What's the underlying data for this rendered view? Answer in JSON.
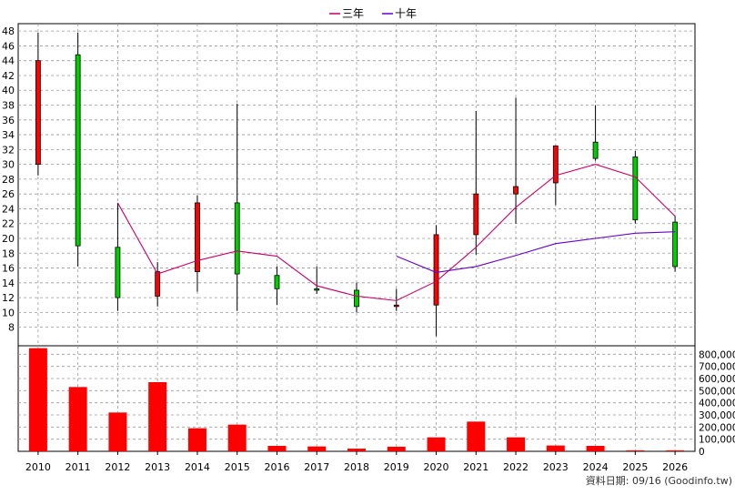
{
  "legend": {
    "items": [
      {
        "label": "三年",
        "color": "#cc0066"
      },
      {
        "label": "十年",
        "color": "#6600cc"
      }
    ]
  },
  "footer": {
    "date_text": "資料日期: 09/16  (Goodinfo.tw)"
  },
  "chart_data": [
    {
      "type": "candlestick",
      "x": [
        "2010",
        "2011",
        "2012",
        "2013",
        "2014",
        "2015",
        "2016",
        "2017",
        "2018",
        "2019",
        "2020",
        "2021",
        "2022",
        "2023",
        "2024",
        "2025",
        "2026"
      ],
      "ohlc": [
        {
          "open": 30.0,
          "high": 47.8,
          "low": 28.5,
          "close": 44.0,
          "direction": "up"
        },
        {
          "open": 44.8,
          "high": 47.8,
          "low": 16.2,
          "close": 19.0,
          "direction": "down"
        },
        {
          "open": 18.8,
          "high": 24.8,
          "low": 10.2,
          "close": 12.0,
          "direction": "down"
        },
        {
          "open": 12.2,
          "high": 16.8,
          "low": 10.8,
          "close": 15.5,
          "direction": "up"
        },
        {
          "open": 15.5,
          "high": 25.8,
          "low": 12.8,
          "close": 24.8,
          "direction": "up"
        },
        {
          "open": 24.8,
          "high": 38.2,
          "low": 10.2,
          "close": 15.2,
          "direction": "down"
        },
        {
          "open": 15.0,
          "high": 16.2,
          "low": 11.0,
          "close": 13.2,
          "direction": "down"
        },
        {
          "open": 13.2,
          "high": 16.2,
          "low": 12.5,
          "close": 13.0,
          "direction": "down"
        },
        {
          "open": 13.0,
          "high": 14.0,
          "low": 10.0,
          "close": 10.8,
          "direction": "down"
        },
        {
          "open": 10.8,
          "high": 13.2,
          "low": 10.2,
          "close": 11.0,
          "direction": "up"
        },
        {
          "open": 11.0,
          "high": 21.8,
          "low": 6.8,
          "close": 20.5,
          "direction": "up"
        },
        {
          "open": 20.5,
          "high": 37.2,
          "low": 17.8,
          "close": 26.0,
          "direction": "up"
        },
        {
          "open": 26.0,
          "high": 39.0,
          "low": 22.0,
          "close": 27.0,
          "direction": "up"
        },
        {
          "open": 27.5,
          "high": 32.5,
          "low": 24.5,
          "close": 32.5,
          "direction": "up"
        },
        {
          "open": 33.0,
          "high": 38.0,
          "low": 30.5,
          "close": 30.8,
          "direction": "down"
        },
        {
          "open": 31.0,
          "high": 31.8,
          "low": 22.0,
          "close": 22.5,
          "direction": "down"
        },
        {
          "open": 22.2,
          "high": 23.0,
          "low": 15.5,
          "close": 16.2,
          "direction": "down"
        }
      ],
      "series": [
        {
          "name": "三年",
          "color": "#cc0066",
          "values": [
            null,
            null,
            24.8,
            15.2,
            17.0,
            18.3,
            17.6,
            13.6,
            12.2,
            11.6,
            14.2,
            18.8,
            24.2,
            28.5,
            30.0,
            28.3,
            23.0
          ]
        },
        {
          "name": "十年",
          "color": "#6600cc",
          "values": [
            null,
            null,
            null,
            null,
            null,
            null,
            null,
            null,
            null,
            17.6,
            15.4,
            16.2,
            17.7,
            19.3,
            20.0,
            20.7,
            20.9
          ]
        }
      ],
      "yticks": [
        8,
        10,
        12,
        14,
        16,
        18,
        20,
        22,
        24,
        26,
        28,
        30,
        32,
        34,
        36,
        38,
        40,
        42,
        44,
        46,
        48
      ],
      "ylim": [
        5.5,
        49
      ],
      "grid": true,
      "legend_position": "top-center",
      "colors": {
        "up": "#ff0000",
        "down": "#00cc00"
      }
    },
    {
      "type": "bar",
      "categories": [
        "2010",
        "2011",
        "2012",
        "2013",
        "2014",
        "2015",
        "2016",
        "2017",
        "2018",
        "2019",
        "2020",
        "2021",
        "2022",
        "2023",
        "2024",
        "2025",
        "2026"
      ],
      "values": [
        850000,
        530000,
        320000,
        570000,
        190000,
        220000,
        45000,
        40000,
        22000,
        38000,
        115000,
        245000,
        115000,
        48000,
        45000,
        8000,
        8000
      ],
      "yticks": [
        "0",
        "100,000",
        "200,000",
        "300,000",
        "400,000",
        "500,000",
        "600,000",
        "700,000",
        "800,000"
      ],
      "ylim": [
        0,
        870000
      ],
      "color": "#ff0000",
      "grid": true
    }
  ]
}
